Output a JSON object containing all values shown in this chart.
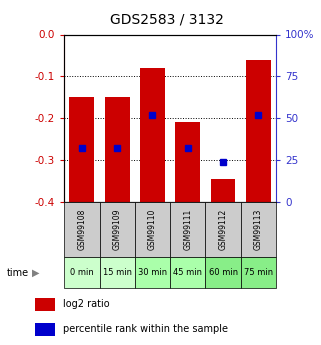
{
  "title": "GDS2583 / 3132",
  "samples": [
    "GSM99108",
    "GSM99109",
    "GSM99110",
    "GSM99111",
    "GSM99112",
    "GSM99113"
  ],
  "time_labels": [
    "0 min",
    "15 min",
    "30 min",
    "45 min",
    "60 min",
    "75 min"
  ],
  "log2_ratio": [
    -0.15,
    -0.15,
    -0.08,
    -0.21,
    -0.345,
    -0.06
  ],
  "percentile_rank": [
    32,
    32,
    52,
    32,
    24,
    52
  ],
  "ylim_left": [
    -0.4,
    0.0
  ],
  "ylim_right": [
    0,
    100
  ],
  "left_ticks": [
    0.0,
    -0.1,
    -0.2,
    -0.3,
    -0.4
  ],
  "right_ticks": [
    0,
    25,
    50,
    75,
    100
  ],
  "bar_color": "#cc0000",
  "dot_color": "#0000cc",
  "bar_width": 0.7,
  "time_bg_colors": [
    "#ccffcc",
    "#ccffcc",
    "#aaffaa",
    "#aaffaa",
    "#88ee88",
    "#88ee88"
  ],
  "gsm_bg": "#cccccc",
  "legend_bar_label": "log2 ratio",
  "legend_dot_label": "percentile rank within the sample",
  "left_axis_color": "#cc0000",
  "right_axis_color": "#3333cc",
  "fig_width": 3.21,
  "fig_height": 3.45,
  "dpi": 100
}
